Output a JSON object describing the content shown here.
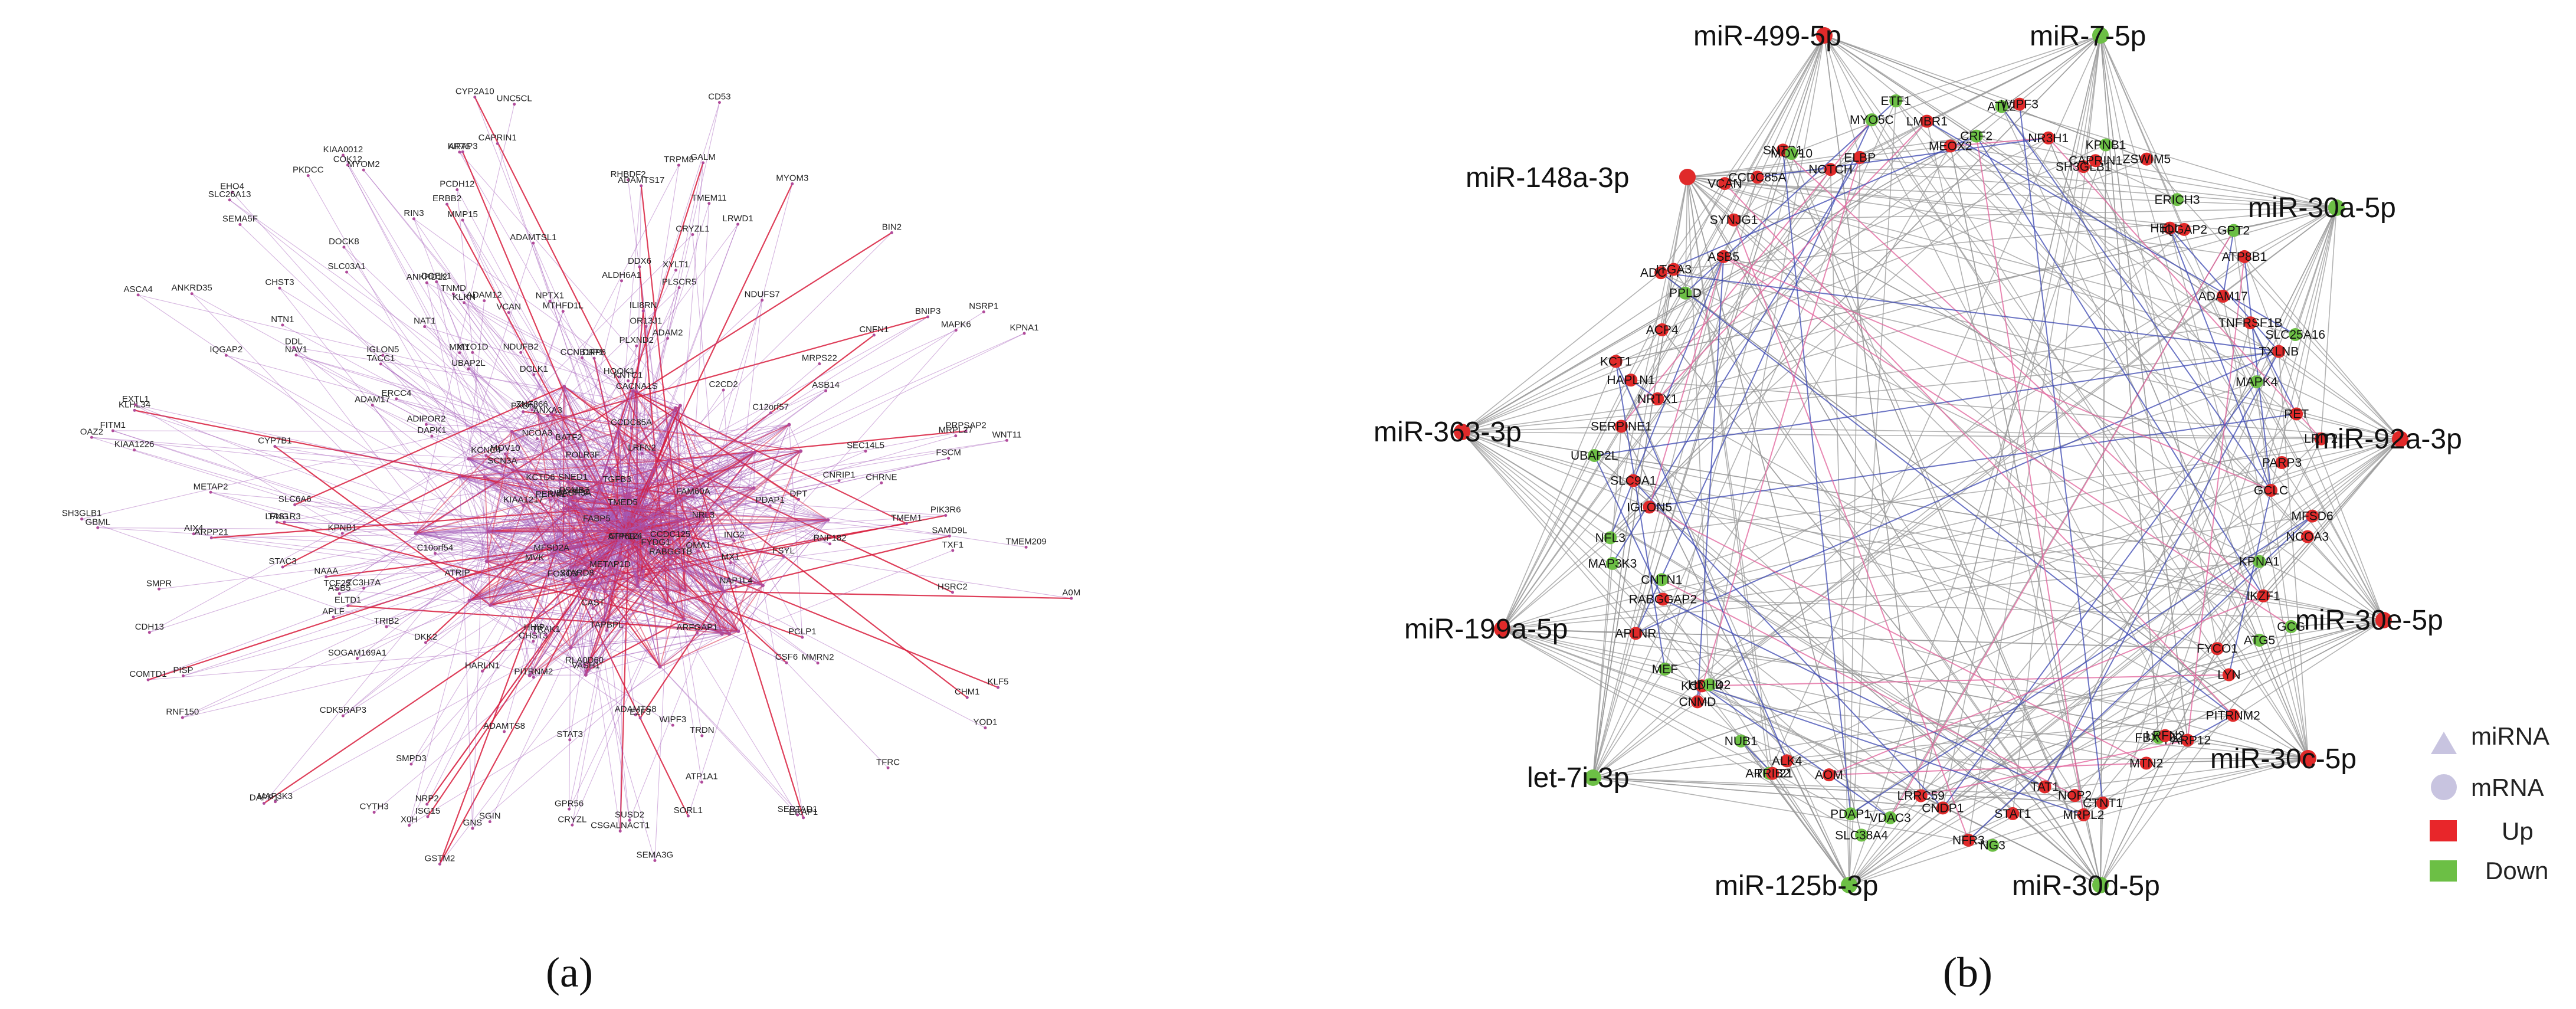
{
  "panel_a": {
    "label": "(a)",
    "nodes": [
      "MXI1",
      "EHO4",
      "RIN3",
      "SERTAD1",
      "ART5",
      "MTHFD1L",
      "HOOK1",
      "ADIPOR2",
      "SORL1",
      "BIN2",
      "PCLP1",
      "NPTX1",
      "PITRNM2",
      "NSRP1",
      "ASB5",
      "CACNA1S",
      "ARFGAP1",
      "SOGAM169A1",
      "SEC14L5",
      "CCNB1IP1",
      "CDH13",
      "ADAM2",
      "KLHL34",
      "ANXA3",
      "MOV10",
      "ADAM12",
      "NDUFB2",
      "TRIB2",
      "COMTD1",
      "PERM1",
      "STARD8",
      "SNED1",
      "CHST3",
      "C10orf54",
      "XYLT1",
      "EXTL1",
      "CHST3",
      "TMEM1",
      "STAC3",
      "MYO1D",
      "SH3GLB1",
      "WIPF3",
      "CNFN1",
      "PIK3R6",
      "NAT1",
      "TMEM11",
      "SGIN",
      "CHRNE",
      "TRDN",
      "MYOM2",
      "IQGAP2",
      "KLF5",
      "MX1",
      "SMPR",
      "X0H",
      "CSGALNACT1",
      "ELTD1",
      "DPT",
      "KIFAP3",
      "CD53",
      "ANKRD35",
      "MYBPC",
      "STAT3",
      "DOCK8",
      "DOEK1",
      "PKDCC",
      "ZNF366",
      "DAPK1",
      "TNMD",
      "SMPD3",
      "DKK2",
      "RLA0D60",
      "MMRN2",
      "PRPSAP2",
      "KIAA1226",
      "OR13J1",
      "TAS1R3",
      "TFRC",
      "UBASH3A",
      "TACC1",
      "CCDC125",
      "FYDG1",
      "RHBDF2",
      "VCAN",
      "ADAMTS8",
      "C12orf57",
      "CHM1",
      "DAPP1",
      "TAPBPL",
      "ASCA4",
      "GPR56",
      "ISG15",
      "ADAMTS8",
      "ADAMTSL1",
      "ERBB2",
      "FOXO3",
      "POLR3F",
      "CSF6",
      "KPNB1",
      "MMP15",
      "ADAM17",
      "NAAA",
      "ERCC4",
      "KPNA1",
      "IGLON5",
      "C2CD2",
      "RNF182",
      "RNF150",
      "TGFB3",
      "ZC3H7A",
      "ERAP1",
      "GSTM2",
      "CYP2A10",
      "DDX6",
      "COK12",
      "NRP2",
      "NTN1",
      "SCN3A",
      "BNIP3",
      "SAMD9L",
      "GNS",
      "UNC5CL",
      "FITM1",
      "METAP1D",
      "SEMA3G",
      "PLXND2",
      "CYTH3",
      "ADAMTS17",
      "DCLK1",
      "MYOM3",
      "DRP6",
      "ATP6B1",
      "VASH1",
      "LFNG",
      "FSYL",
      "SEMA5F",
      "FABP5",
      "CRYZL",
      "METAP2",
      "KCNC4",
      "PLSCR5",
      "SLC03A1",
      "MVK",
      "NAV1",
      "ALDH6A1",
      "A0M",
      "GALM",
      "CAST",
      "KIAA0012",
      "APLF",
      "MRPL27",
      "AIX4",
      "CYP7B1",
      "PCDH12",
      "HHIP",
      "NRL3",
      "NDUFS7",
      "PSMB7",
      "YOD1",
      "CRYZL1",
      "WNT11",
      "CAPRIN1",
      "FSCM",
      "PXDN",
      "ILI8RN",
      "ANKRD12",
      "MRPS22",
      "TXF1",
      "RABGGTB",
      "CNRIP1",
      "KIAA1217",
      "ASB14",
      "SLC26A13",
      "TRPM8",
      "ATRIP",
      "BATF2",
      "TMEM209",
      "PISP",
      "UBAP2L",
      "GPR124",
      "DDL",
      "NCOA3",
      "TRAK1",
      "OMA1",
      "NAP1L4",
      "CCDC85A",
      "GBML",
      "HSRC2",
      "KLKN",
      "FAM60A",
      "ATP1A1",
      "LRWD1",
      "E2F3",
      "SUSD2",
      "PDAP1",
      "HARLN1",
      "TCF25",
      "TMED5",
      "LRFN2",
      "OAZ2",
      "KNTC1",
      "ING2",
      "MAPK6",
      "MAP3K3",
      "MFSD2A",
      "CDK5RAP3",
      "SLC6A6",
      "ARPP21",
      "KCTD6"
    ]
  },
  "panel_b": {
    "label": "(b)",
    "mirnas": [
      {
        "name": "miR-499-5p",
        "regulation": "Up"
      },
      {
        "name": "miR-7-5p",
        "regulation": "Down"
      },
      {
        "name": "miR-148a-3p",
        "regulation": "Up"
      },
      {
        "name": "miR-30a-5p",
        "regulation": "Down"
      },
      {
        "name": "miR-363-3p",
        "regulation": "Up"
      },
      {
        "name": "miR-92a-3p",
        "regulation": "Up"
      },
      {
        "name": "miR-199a-5p",
        "regulation": "Up"
      },
      {
        "name": "miR-30e-5p",
        "regulation": "Up"
      },
      {
        "name": "let-7i-3p",
        "regulation": "Down"
      },
      {
        "name": "miR-30c-5p",
        "regulation": "Up"
      },
      {
        "name": "miR-125b-3p",
        "regulation": "Down"
      },
      {
        "name": "miR-30d-5p",
        "regulation": "Down"
      }
    ],
    "mrnas": [
      {
        "name": "SNTB1",
        "regulation": "Up"
      },
      {
        "name": "MOV10",
        "regulation": "Down"
      },
      {
        "name": "NOTCH",
        "regulation": "Up"
      },
      {
        "name": "ELBP",
        "regulation": "Up"
      },
      {
        "name": "MYO5C",
        "regulation": "Down"
      },
      {
        "name": "ETF1",
        "regulation": "Down"
      },
      {
        "name": "LMBR1",
        "regulation": "Up"
      },
      {
        "name": "MEOX2",
        "regulation": "Up"
      },
      {
        "name": "CRF2",
        "regulation": "Down"
      },
      {
        "name": "ATL2",
        "regulation": "Down"
      },
      {
        "name": "WIPF3",
        "regulation": "Up"
      },
      {
        "name": "NR3H1",
        "regulation": "Up"
      },
      {
        "name": "SH3GLB1",
        "regulation": "Up"
      },
      {
        "name": "CAPRIN1",
        "regulation": "Up"
      },
      {
        "name": "KPNB1",
        "regulation": "Down"
      },
      {
        "name": "ZSWIM5",
        "regulation": "Up"
      },
      {
        "name": "ERICH3",
        "regulation": "Down"
      },
      {
        "name": "HELLS",
        "regulation": "Up"
      },
      {
        "name": "IQGAP2",
        "regulation": "Up"
      },
      {
        "name": "GPT2",
        "regulation": "Down"
      },
      {
        "name": "ATP8B1",
        "regulation": "Up"
      },
      {
        "name": "ADAM17",
        "regulation": "Up"
      },
      {
        "name": "TNFRSF1B",
        "regulation": "Up"
      },
      {
        "name": "SLC25A16",
        "regulation": "Down"
      },
      {
        "name": "TXLNB",
        "regulation": "Up"
      },
      {
        "name": "MAPK4",
        "regulation": "Down"
      },
      {
        "name": "RET",
        "regulation": "Up"
      },
      {
        "name": "LRIT2",
        "regulation": "Up"
      },
      {
        "name": "PARP3",
        "regulation": "Up"
      },
      {
        "name": "GCLC",
        "regulation": "Up"
      },
      {
        "name": "MFSD6",
        "regulation": "Up"
      },
      {
        "name": "NCOA3",
        "regulation": "Up"
      },
      {
        "name": "KPNA1",
        "regulation": "Down"
      },
      {
        "name": "IKZF1",
        "regulation": "Up"
      },
      {
        "name": "GCG",
        "regulation": "Down"
      },
      {
        "name": "ATG5",
        "regulation": "Down"
      },
      {
        "name": "FYCO1",
        "regulation": "Up"
      },
      {
        "name": "LYN",
        "regulation": "Up"
      },
      {
        "name": "PITRNM2",
        "regulation": "Up"
      },
      {
        "name": "PARP12",
        "regulation": "Up"
      },
      {
        "name": "FBXO32",
        "regulation": "Down"
      },
      {
        "name": "LRFN2",
        "regulation": "Up"
      },
      {
        "name": "MTN2",
        "regulation": "Up"
      },
      {
        "name": "CTNT1",
        "regulation": "Up"
      },
      {
        "name": "MRPL2",
        "regulation": "Up"
      },
      {
        "name": "NOP2",
        "regulation": "Up"
      },
      {
        "name": "TAT1",
        "regulation": "Up"
      },
      {
        "name": "STAT1",
        "regulation": "Up"
      },
      {
        "name": "NG3",
        "regulation": "Down"
      },
      {
        "name": "NFR3",
        "regulation": "Up"
      },
      {
        "name": "CNDP1",
        "regulation": "Up"
      },
      {
        "name": "LRRC59",
        "regulation": "Up"
      },
      {
        "name": "VDAC3",
        "regulation": "Down"
      },
      {
        "name": "SLC38A4",
        "regulation": "Down"
      },
      {
        "name": "PDAP1",
        "regulation": "Down"
      },
      {
        "name": "AOM",
        "regulation": "Up"
      },
      {
        "name": "ALK4",
        "regulation": "Up"
      },
      {
        "name": "ARPP21",
        "regulation": "Down"
      },
      {
        "name": "TRIB2",
        "regulation": "Up"
      },
      {
        "name": "NUB1",
        "regulation": "Down"
      },
      {
        "name": "CNMD",
        "regulation": "Up"
      },
      {
        "name": "KCNC4",
        "regulation": "Up"
      },
      {
        "name": "HDHD2",
        "regulation": "Down"
      },
      {
        "name": "MEF",
        "regulation": "Down"
      },
      {
        "name": "APLNR",
        "regulation": "Up"
      },
      {
        "name": "RABGGAP2",
        "regulation": "Up"
      },
      {
        "name": "CNTN1",
        "regulation": "Down"
      },
      {
        "name": "MAP3K3",
        "regulation": "Down"
      },
      {
        "name": "NFL3",
        "regulation": "Down"
      },
      {
        "name": "IGLON5",
        "regulation": "Up"
      },
      {
        "name": "SLC9A1",
        "regulation": "Up"
      },
      {
        "name": "UBAP2L",
        "regulation": "Down"
      },
      {
        "name": "SERPINE1",
        "regulation": "Up"
      },
      {
        "name": "NRTX1",
        "regulation": "Up"
      },
      {
        "name": "HAPLN1",
        "regulation": "Up"
      },
      {
        "name": "KCT1",
        "regulation": "Up"
      },
      {
        "name": "ACP4",
        "regulation": "Up"
      },
      {
        "name": "PPLD",
        "regulation": "Down"
      },
      {
        "name": "ADCY7",
        "regulation": "Up"
      },
      {
        "name": "ITGA3",
        "regulation": "Up"
      },
      {
        "name": "ASB5",
        "regulation": "Up"
      },
      {
        "name": "SYNJG1",
        "regulation": "Up"
      },
      {
        "name": "VCAN",
        "regulation": "Up"
      },
      {
        "name": "CCDC85A",
        "regulation": "Up"
      }
    ]
  },
  "legend": [
    {
      "shape": "triangle",
      "label": "miRNA",
      "color": "#c8c4e0"
    },
    {
      "shape": "circle",
      "label": "mRNA",
      "color": "#c8c4e0"
    },
    {
      "shape": "rect",
      "label": "Up",
      "color": "#e8262a"
    },
    {
      "shape": "rect",
      "label": "Down",
      "color": "#6cbf45"
    }
  ],
  "colors": {
    "up": "#e02a2a",
    "down": "#6cbf45",
    "edge_gray": "#9a9a9a",
    "edge_blue": "#3a46b0",
    "edge_pink": "#e0609a",
    "edge_purple": "#a259b8",
    "edge_red": "#d81c3c"
  }
}
